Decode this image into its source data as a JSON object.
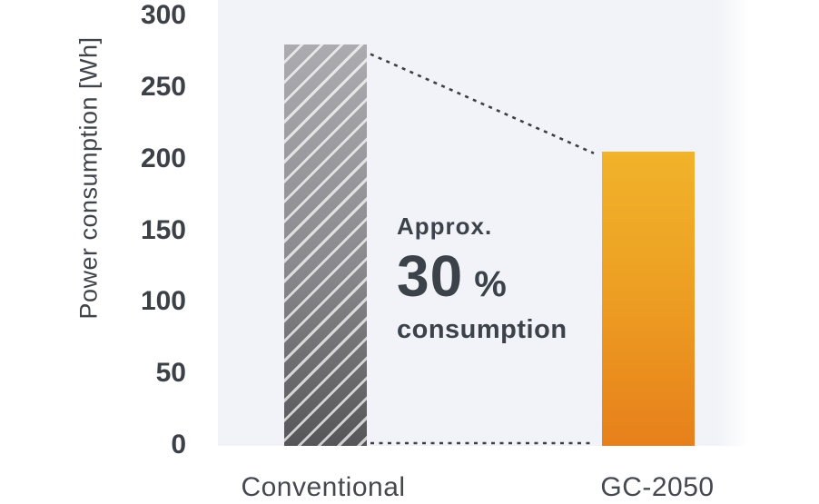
{
  "chart_data": {
    "type": "bar",
    "title": "",
    "xlabel": "",
    "ylabel": "Power consumption [Wh]",
    "categories": [
      "Conventional",
      "GC-2050"
    ],
    "values": [
      280,
      205
    ],
    "ylim": [
      0,
      300
    ],
    "yticks": [
      0,
      50,
      100,
      150,
      200,
      250,
      300
    ],
    "grid": false,
    "legend_position": "none",
    "annotation": {
      "prefix": "Approx.",
      "value": "30",
      "unit": "%",
      "suffix": "consumption"
    },
    "bar_styles": [
      {
        "category": "Conventional",
        "fill_top": "#acabaf",
        "fill_bottom": "#565659",
        "hatch": "diagonal-stripes"
      },
      {
        "category": "GC-2050",
        "fill_top": "#f1b32a",
        "fill_bottom": "#e7801b",
        "hatch": "none"
      }
    ],
    "guide_line_style": "dotted"
  },
  "colors": {
    "plot_background": "#f2f3f8",
    "page_background": "#ffffff",
    "text": "#3c4147",
    "dotted_line": "#3b4045"
  }
}
